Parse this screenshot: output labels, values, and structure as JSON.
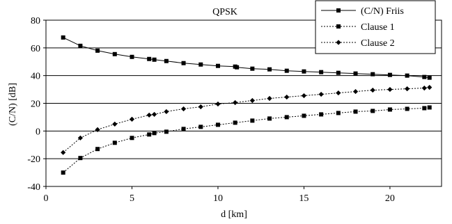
{
  "chart_data": {
    "type": "line",
    "title": "QPSK",
    "xlabel": "d [km]",
    "ylabel": "(C/N) [dB]",
    "xlim": [
      0,
      23
    ],
    "ylim": [
      -40,
      80
    ],
    "xticks": [
      0,
      5,
      10,
      15,
      20
    ],
    "yticks": [
      -40,
      -20,
      0,
      20,
      40,
      60,
      80
    ],
    "grid": "horizontal",
    "legend_position": "top-right",
    "series": [
      {
        "name": "(C/N) Friis",
        "line_style": "solid",
        "marker": "square",
        "color": "#000000",
        "x": [
          1,
          2,
          3,
          4,
          5,
          6,
          6.3,
          7,
          8,
          9,
          10,
          11,
          11.1,
          12,
          13,
          14,
          15,
          16,
          17,
          18,
          19,
          20,
          21,
          22,
          22.3
        ],
        "y": [
          67.5,
          61.5,
          58,
          55.5,
          53.5,
          52,
          51.5,
          50.5,
          49,
          48,
          47,
          46.5,
          46,
          45,
          44.5,
          43.5,
          43,
          42.5,
          42,
          41.5,
          41,
          40.5,
          40,
          39,
          38.5
        ]
      },
      {
        "name": "Clause 1",
        "line_style": "dotted",
        "marker": "square",
        "color": "#000000",
        "x": [
          1,
          2,
          3,
          4,
          5,
          6,
          6.3,
          7,
          8,
          9,
          10,
          11,
          12,
          13,
          14,
          15,
          16,
          17,
          18,
          19,
          20,
          21,
          22,
          22.3
        ],
        "y": [
          -30,
          -19.5,
          -13,
          -8.5,
          -5,
          -2.5,
          -1.5,
          -0.5,
          1.5,
          3,
          4.5,
          6,
          7.5,
          9,
          10,
          11,
          12,
          13,
          14,
          14.5,
          15.5,
          16,
          16.5,
          17
        ]
      },
      {
        "name": "Clause 2",
        "line_style": "dotted",
        "marker": "diamond",
        "color": "#000000",
        "x": [
          1,
          2,
          3,
          4,
          5,
          6,
          6.3,
          7,
          8,
          9,
          10,
          11,
          12,
          13,
          14,
          15,
          16,
          17,
          18,
          19,
          20,
          21,
          22,
          22.3
        ],
        "y": [
          -15.5,
          -5,
          1,
          5,
          8.5,
          11.5,
          12,
          14,
          16,
          17.5,
          19.5,
          20.5,
          22,
          23.5,
          24.5,
          25.5,
          26.5,
          27.5,
          28.5,
          29.5,
          30,
          30.5,
          31,
          31.5
        ]
      }
    ]
  }
}
